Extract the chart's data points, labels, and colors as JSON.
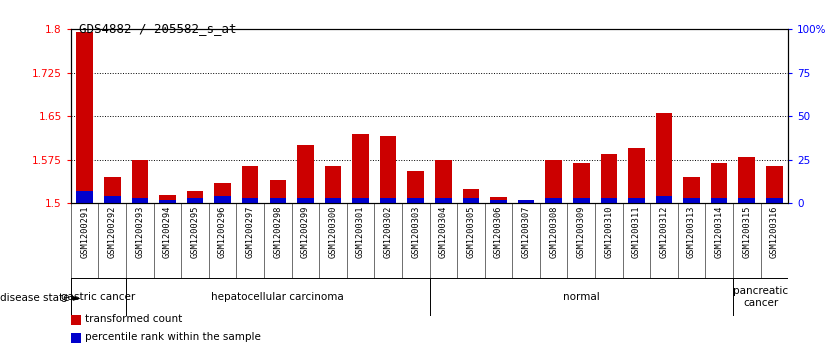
{
  "title": "GDS4882 / 205582_s_at",
  "samples": [
    "GSM1200291",
    "GSM1200292",
    "GSM1200293",
    "GSM1200294",
    "GSM1200295",
    "GSM1200296",
    "GSM1200297",
    "GSM1200298",
    "GSM1200299",
    "GSM1200300",
    "GSM1200301",
    "GSM1200302",
    "GSM1200303",
    "GSM1200304",
    "GSM1200305",
    "GSM1200306",
    "GSM1200307",
    "GSM1200308",
    "GSM1200309",
    "GSM1200310",
    "GSM1200311",
    "GSM1200312",
    "GSM1200313",
    "GSM1200314",
    "GSM1200315",
    "GSM1200316"
  ],
  "transformed_count": [
    1.795,
    1.545,
    1.575,
    1.515,
    1.522,
    1.535,
    1.565,
    1.54,
    1.6,
    1.565,
    1.62,
    1.615,
    1.555,
    1.575,
    1.525,
    1.51,
    1.505,
    1.575,
    1.57,
    1.585,
    1.595,
    1.655,
    1.545,
    1.57,
    1.58,
    1.565
  ],
  "percentile_rank": [
    7,
    4,
    3,
    2,
    3,
    4,
    3,
    3,
    3,
    3,
    3,
    3,
    3,
    3,
    3,
    2,
    2,
    3,
    3,
    3,
    3,
    4,
    3,
    3,
    3,
    3
  ],
  "bar_color_red": "#CC0000",
  "bar_color_blue": "#0000CC",
  "ymin": 1.5,
  "ymax": 1.8,
  "y_ticks_left": [
    1.5,
    1.575,
    1.65,
    1.725,
    1.8
  ],
  "y_ticks_right": [
    0,
    25,
    50,
    75,
    100
  ],
  "dotted_lines": [
    1.575,
    1.65,
    1.725
  ],
  "group_boundaries": [
    [
      0,
      2,
      "gastric cancer"
    ],
    [
      2,
      13,
      "hepatocellular carcinoma"
    ],
    [
      13,
      24,
      "normal"
    ],
    [
      24,
      26,
      "pancreatic\ncancer"
    ]
  ],
  "green_color": "#90EE90",
  "gray_color": "#C8C8C8",
  "plot_bg": "#ffffff"
}
